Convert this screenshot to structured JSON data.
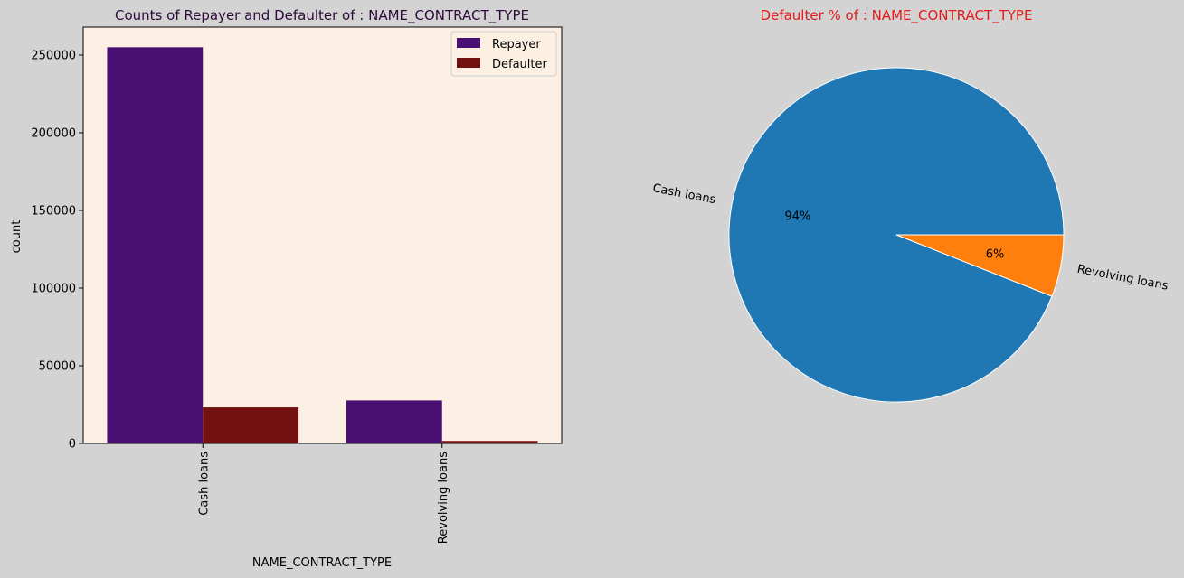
{
  "chart_data": [
    {
      "type": "bar",
      "title": "Counts of Repayer and Defaulter of : NAME_CONTRACT_TYPE",
      "xlabel": "NAME_CONTRACT_TYPE",
      "ylabel": "count",
      "categories": [
        "Cash loans",
        "Revolving loans"
      ],
      "series": [
        {
          "name": "Repayer",
          "values": [
            255011,
            27675
          ],
          "color": "#4a0f72"
        },
        {
          "name": "Defaulter",
          "values": [
            23221,
            1604
          ],
          "color": "#731111"
        }
      ],
      "ylim": [
        0,
        268000
      ],
      "yticks": [
        0,
        50000,
        100000,
        150000,
        200000,
        250000
      ],
      "ytick_labels": [
        "0",
        "50000",
        "100000",
        "150000",
        "200000",
        "250000"
      ],
      "legend": "top-right",
      "grid": false,
      "title_color": "#2e0a3a",
      "plot_background": "#fbf0e3"
    },
    {
      "type": "pie",
      "title": "Defaulter % of : NAME_CONTRACT_TYPE",
      "labels": [
        "Cash loans",
        "Revolving loans"
      ],
      "values": [
        94,
        6
      ],
      "autopct_labels": [
        "94%",
        "6%"
      ],
      "colors": [
        "#1f77b4",
        "#ff7f0e"
      ],
      "title_color": "#e41a1c"
    }
  ]
}
